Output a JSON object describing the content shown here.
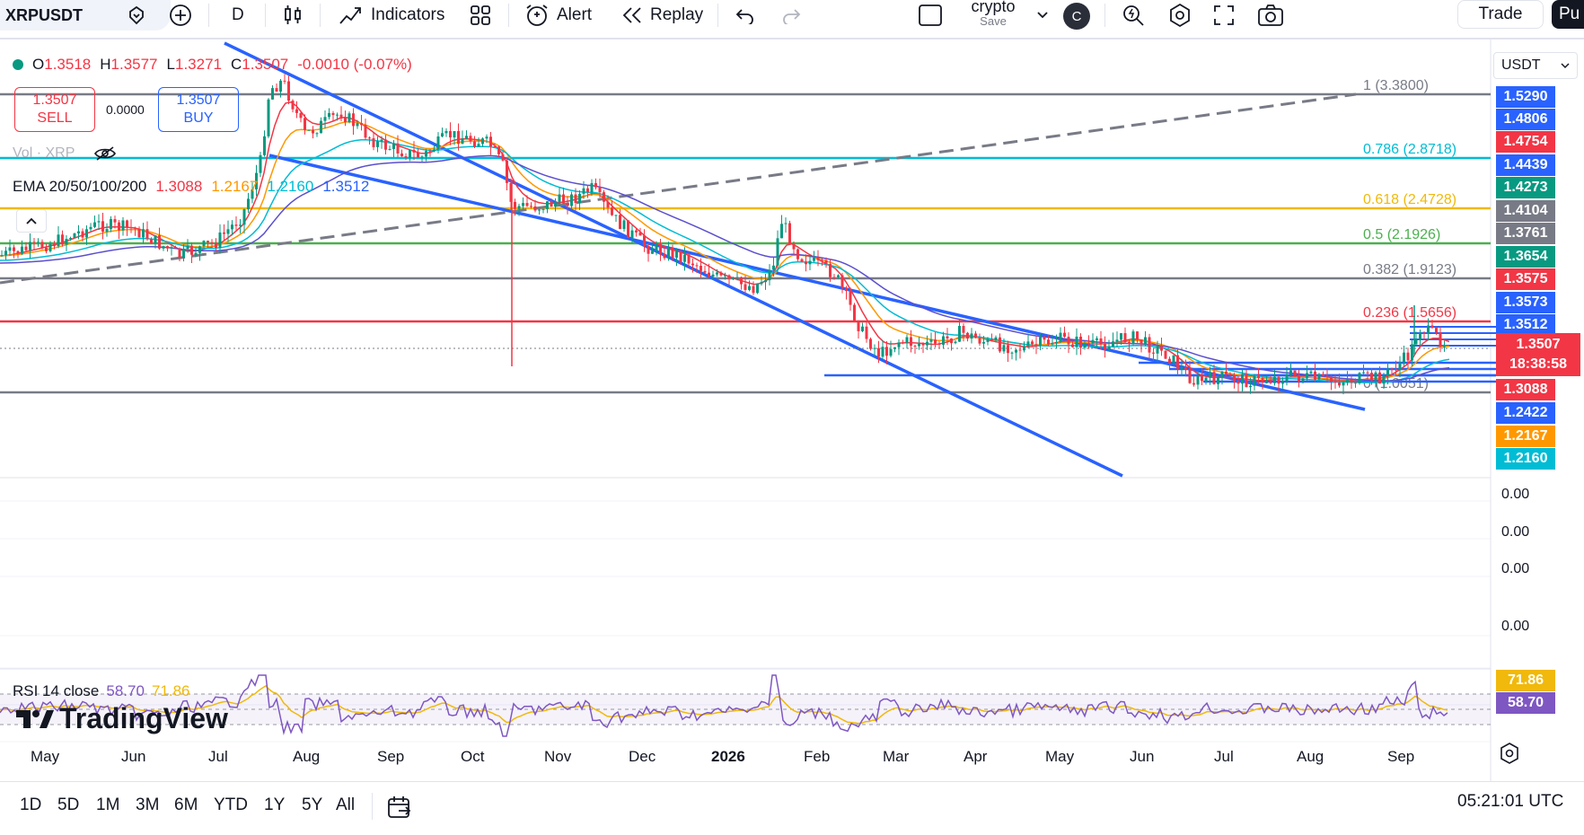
{
  "toolbar": {
    "symbol": "XRPUSDT",
    "interval": "D",
    "indicators_label": "Indicators",
    "alert_label": "Alert",
    "replay_label": "Replay",
    "layout_name": "crypto",
    "layout_save": "Save",
    "avatar_letter": "C",
    "trade_label": "Trade",
    "publish_label": "Pu"
  },
  "legend": {
    "open_label": "O",
    "open": "1.3518",
    "high_label": "H",
    "high": "1.3577",
    "low_label": "L",
    "low": "1.3271",
    "close_label": "C",
    "close": "1.3507",
    "change": "-0.0010 (-0.07%)"
  },
  "trade_box": {
    "sell_price": "1.3507",
    "sell_label": "SELL",
    "spread": "0.0000",
    "buy_price": "1.3507",
    "buy_label": "BUY"
  },
  "volume_label": "Vol · XRP",
  "ema": {
    "label": "EMA 20/50/100/200",
    "v20": "1.3088",
    "v50": "1.2167",
    "v100": "1.2160",
    "v200": "1.3512"
  },
  "fib": [
    "1 (3.3800)",
    "0.786 (2.8718)",
    "0.618 (2.4728)",
    "0.5 (2.1926)",
    "0.382 (1.9123)",
    "0.236 (1.5656)",
    "0 (1.0051)"
  ],
  "price_scale": {
    "currency": "USDT",
    "tags": [
      "1.5290",
      "1.4806",
      "1.4754",
      "1.4439",
      "1.4273",
      "1.4104",
      "1.3761",
      "1.3654",
      "1.3575",
      "1.3573",
      "1.3512"
    ],
    "current_price": "1.3507",
    "countdown": "18:38:58",
    "lower_tags": [
      "1.3088",
      "1.2422",
      "1.2167",
      "1.2160"
    ],
    "zero_labels": [
      "0.00",
      "0.00",
      "0.00",
      "0.00"
    ]
  },
  "rsi": {
    "label": "RSI 14 close",
    "value": "58.70",
    "ma": "71.86"
  },
  "brand": "TradingView",
  "time_axis": [
    "May",
    "Jun",
    "Jul",
    "Aug",
    "Sep",
    "Oct",
    "Nov",
    "Dec",
    "2026",
    "Feb",
    "Mar",
    "Apr",
    "May",
    "Jun",
    "Jul",
    "Aug",
    "Sep"
  ],
  "ranges": [
    "1D",
    "5D",
    "1M",
    "3M",
    "6M",
    "YTD",
    "1Y",
    "5Y",
    "All"
  ],
  "clock": "05:21:01 UTC",
  "colors": {
    "red": "#f23645",
    "blue": "#2962ff",
    "green": "#089981",
    "ema20": "#f23645",
    "ema50": "#ff9800",
    "ema100": "#00bcd4",
    "ema200": "#5b4fcf",
    "fib_gold": "#f0b90b",
    "fib_teal": "#00bcd4",
    "fib_green": "#4caf50",
    "fib_gray": "#787b86"
  }
}
